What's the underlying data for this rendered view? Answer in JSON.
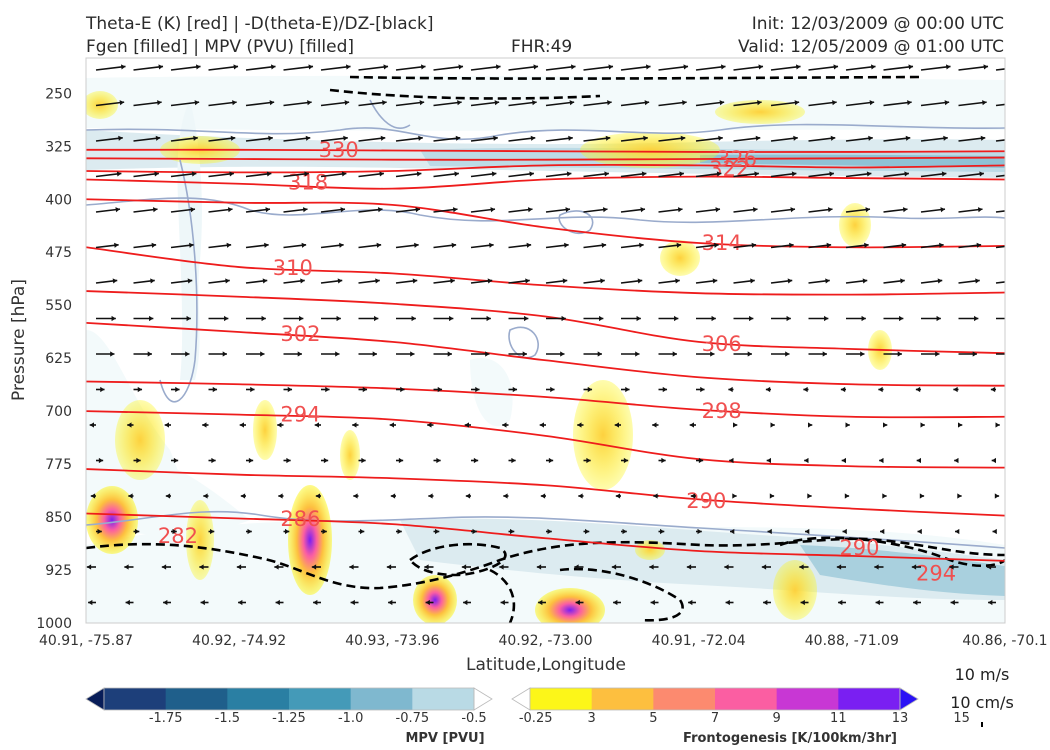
{
  "header": {
    "title_line1": "Theta-E (K) [red] | -D(theta-E)/DZ-[black]",
    "title_line2": "Fgen [filled] | MPV (PVU) [filled]",
    "fhr": "FHR:49",
    "init": "Init: 12/03/2009 @ 00:00 UTC",
    "valid": "Valid: 12/05/2009 @ 01:00 UTC"
  },
  "chart_data": {
    "type": "cross-section",
    "xlabel": "Latitude,Longitude",
    "ylabel": "Pressure [hPa]",
    "x_ticks": [
      "40.91, -75.87",
      "40.92, -74.92",
      "40.93, -73.96",
      "40.92, -73.00",
      "40.91, -72.04",
      "40.88, -71.09",
      "40.86, -70.1"
    ],
    "y_ticks": [
      250,
      325,
      400,
      475,
      550,
      625,
      700,
      775,
      850,
      925,
      1000
    ],
    "ylim": [
      1000,
      200
    ],
    "y_inverted": true,
    "theta_e_contours": [
      {
        "label": "330",
        "p": [
          [
            0,
            330
          ],
          [
            1,
            330
          ],
          [
            2,
            331
          ],
          [
            3,
            332
          ],
          [
            4,
            333
          ],
          [
            5,
            333
          ],
          [
            6,
            332
          ]
        ]
      },
      {
        "label": "326",
        "p": [
          [
            0,
            342
          ],
          [
            1,
            343
          ],
          [
            2,
            344
          ],
          [
            3,
            344
          ],
          [
            4,
            343
          ],
          [
            5,
            342
          ],
          [
            6,
            341
          ]
        ]
      },
      {
        "label": "322",
        "p": [
          [
            0,
            360
          ],
          [
            1,
            362
          ],
          [
            2,
            360
          ],
          [
            3,
            352
          ],
          [
            4,
            352
          ],
          [
            5,
            355
          ],
          [
            6,
            352
          ]
        ]
      },
      {
        "label": "318",
        "p": [
          [
            0,
            372
          ],
          [
            1,
            378
          ],
          [
            2,
            385
          ],
          [
            3,
            372
          ],
          [
            4,
            368
          ],
          [
            5,
            370
          ],
          [
            6,
            372
          ]
        ]
      },
      {
        "label": "314",
        "p": [
          [
            0,
            400
          ],
          [
            1,
            405
          ],
          [
            2,
            408
          ],
          [
            3,
            440
          ],
          [
            4,
            462
          ],
          [
            5,
            468
          ],
          [
            6,
            466
          ]
        ]
      },
      {
        "label": "310",
        "p": [
          [
            0,
            468
          ],
          [
            1,
            496
          ],
          [
            2,
            505
          ],
          [
            3,
            522
          ],
          [
            4,
            533
          ],
          [
            5,
            535
          ],
          [
            6,
            532
          ]
        ]
      },
      {
        "label": "306",
        "p": [
          [
            0,
            530
          ],
          [
            1,
            538
          ],
          [
            2,
            548
          ],
          [
            3,
            566
          ],
          [
            4,
            602
          ],
          [
            5,
            612
          ],
          [
            6,
            618
          ]
        ]
      },
      {
        "label": "302",
        "p": [
          [
            0,
            575
          ],
          [
            1,
            588
          ],
          [
            2,
            602
          ],
          [
            3,
            628
          ],
          [
            4,
            652
          ],
          [
            5,
            662
          ],
          [
            6,
            664
          ]
        ]
      },
      {
        "label": "298",
        "p": [
          [
            0,
            658
          ],
          [
            1,
            662
          ],
          [
            2,
            668
          ],
          [
            3,
            680
          ],
          [
            4,
            698
          ],
          [
            5,
            708
          ],
          [
            6,
            708
          ]
        ]
      },
      {
        "label": "294",
        "p": [
          [
            0,
            700
          ],
          [
            1,
            705
          ],
          [
            2,
            712
          ],
          [
            3,
            735
          ],
          [
            4,
            768
          ],
          [
            5,
            778
          ],
          [
            6,
            780
          ]
        ]
      },
      {
        "label": "290",
        "p": [
          [
            0,
            782
          ],
          [
            1,
            790
          ],
          [
            2,
            795
          ],
          [
            3,
            805
          ],
          [
            4,
            825
          ],
          [
            5,
            838
          ],
          [
            6,
            848
          ]
        ]
      },
      {
        "label": "286",
        "p": [
          [
            0,
            845
          ],
          [
            1,
            852
          ],
          [
            2,
            860
          ],
          [
            3,
            880
          ],
          [
            4,
            898
          ],
          [
            5,
            905
          ],
          [
            6,
            912
          ]
        ]
      }
    ],
    "contour_labels": [
      {
        "text": "330",
        "x": 1.65,
        "p": 330
      },
      {
        "text": "326",
        "x": 4.25,
        "p": 343
      },
      {
        "text": "322",
        "x": 4.2,
        "p": 357
      },
      {
        "text": "318",
        "x": 1.45,
        "p": 376
      },
      {
        "text": "314",
        "x": 4.15,
        "p": 462
      },
      {
        "text": "310",
        "x": 1.35,
        "p": 497
      },
      {
        "text": "306",
        "x": 4.15,
        "p": 605
      },
      {
        "text": "302",
        "x": 1.4,
        "p": 591
      },
      {
        "text": "298",
        "x": 4.15,
        "p": 700
      },
      {
        "text": "294",
        "x": 1.4,
        "p": 705
      },
      {
        "text": "290",
        "x": 4.05,
        "p": 827
      },
      {
        "text": "286",
        "x": 1.4,
        "p": 853
      },
      {
        "text": "282",
        "x": 0.6,
        "p": 877
      },
      {
        "text": "290",
        "x": 5.05,
        "p": 894
      },
      {
        "text": "294",
        "x": 5.55,
        "p": 930
      }
    ],
    "mpv_colorbar": {
      "label": "MPV [PVU]",
      "ticks": [
        "-1.75",
        "-1.5",
        "-1.25",
        "-1.0",
        "-0.75",
        "-0.5",
        "-0.25"
      ],
      "colors": [
        "#081d58",
        "#1d3f7a",
        "#1f5f8b",
        "#2a7fa3",
        "#449ab8",
        "#7fb8cf",
        "#b9dae5",
        "#ffffff"
      ]
    },
    "fgen_colorbar": {
      "label": "Frontogenesis [K/100km/3hr]",
      "ticks": [
        "3",
        "5",
        "7",
        "9",
        "11",
        "13",
        "15"
      ],
      "colors": [
        "#ffffff",
        "#fcf619",
        "#fdbf3f",
        "#fc8a6f",
        "#fb5ea2",
        "#c837d4",
        "#7a1ff2",
        "#2a12f5"
      ]
    },
    "wind_reference": {
      "horizontal": "10 m/s",
      "vertical": "10 cm/s"
    }
  }
}
